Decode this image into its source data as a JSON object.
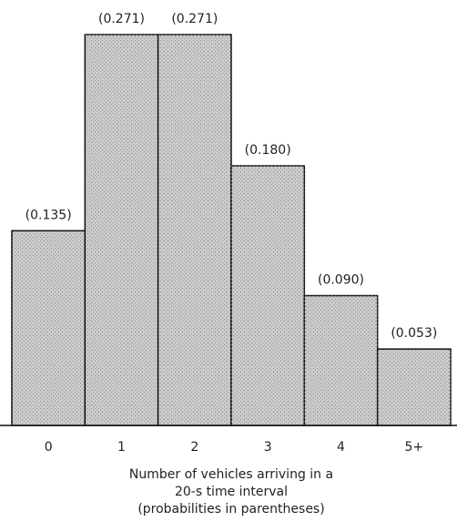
{
  "chart_data": {
    "type": "bar",
    "categories": [
      "0",
      "1",
      "2",
      "3",
      "4",
      "5+"
    ],
    "values": [
      0.135,
      0.271,
      0.271,
      0.18,
      0.09,
      0.053
    ],
    "value_labels": [
      "(0.135)",
      "(0.271)",
      "(0.271)",
      "(0.180)",
      "(0.090)",
      "(0.053)"
    ],
    "color": "#cbcbcb",
    "x_label": [
      "Number of vehicles arriving in a",
      "20-s time interval",
      "(probabilities in parentheses)"
    ]
  }
}
